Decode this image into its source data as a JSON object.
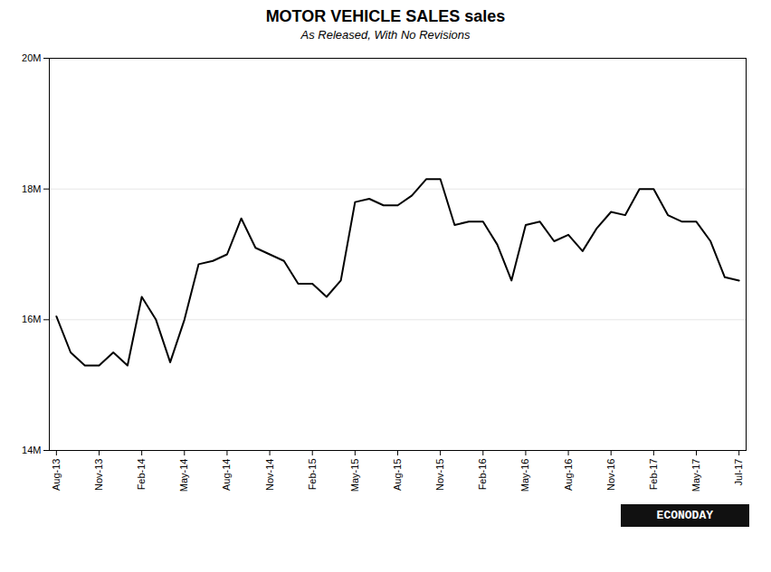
{
  "chart_data": {
    "type": "line",
    "title": "MOTOR VEHICLE SALES sales",
    "subtitle": "As Released, With No Revisions",
    "categories": [
      "Aug-13",
      null,
      null,
      "Nov-13",
      null,
      null,
      "Feb-14",
      null,
      null,
      "May-14",
      null,
      null,
      "Aug-14",
      null,
      null,
      "Nov-14",
      null,
      null,
      "Feb-15",
      null,
      null,
      "May-15",
      null,
      null,
      "Aug-15",
      null,
      null,
      "Nov-15",
      null,
      null,
      "Feb-16",
      null,
      null,
      "May-16",
      null,
      null,
      "Aug-16",
      null,
      null,
      "Nov-16",
      null,
      null,
      "Feb-17",
      null,
      null,
      "May-17",
      null,
      null,
      "Jul-17"
    ],
    "values": [
      16.05,
      15.5,
      15.3,
      15.3,
      15.5,
      15.3,
      16.35,
      16.0,
      15.35,
      16.0,
      16.85,
      16.9,
      17.0,
      17.55,
      17.1,
      17.0,
      16.9,
      16.55,
      16.55,
      16.35,
      16.6,
      17.8,
      17.85,
      17.75,
      17.75,
      17.9,
      18.15,
      18.15,
      17.45,
      17.5,
      17.5,
      17.15,
      16.6,
      17.45,
      17.5,
      17.2,
      17.3,
      17.05,
      17.4,
      17.65,
      17.6,
      18.0,
      18.0,
      17.6,
      17.5,
      17.5,
      17.2,
      16.65,
      16.6
    ],
    "ylim": [
      14,
      20
    ],
    "yticks": [
      {
        "value": 14,
        "label": "14M"
      },
      {
        "value": 16,
        "label": "16M"
      },
      {
        "value": 18,
        "label": "18M"
      },
      {
        "value": 20,
        "label": "20M"
      }
    ],
    "grid": true,
    "annotations": [
      "ECONODAY"
    ]
  }
}
